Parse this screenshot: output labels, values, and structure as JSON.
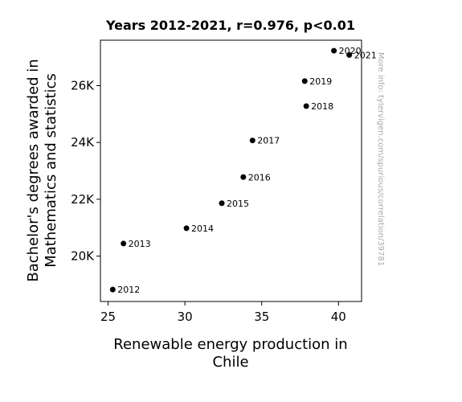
{
  "chart_data": {
    "type": "scatter",
    "title": "Years 2012-2021, r=0.976, p<0.01",
    "xlabel_lines": [
      "Renewable energy production in",
      "Chile"
    ],
    "ylabel_lines": [
      "Bachelor's degrees awarded in",
      "Mathematics and statistics"
    ],
    "xlim": [
      24.5,
      41.5
    ],
    "ylim": [
      18400,
      27600
    ],
    "xticks": [
      25,
      30,
      35,
      40
    ],
    "yticks": [
      20000,
      22000,
      24000,
      26000
    ],
    "ytick_labels": [
      "20K",
      "22K",
      "24K",
      "26K"
    ],
    "grid": false,
    "point_color": "#000000",
    "points": [
      {
        "x": 25.3,
        "y": 18820,
        "label": "2012"
      },
      {
        "x": 26.0,
        "y": 20440,
        "label": "2013"
      },
      {
        "x": 30.1,
        "y": 20980,
        "label": "2014"
      },
      {
        "x": 32.4,
        "y": 21860,
        "label": "2015"
      },
      {
        "x": 33.8,
        "y": 22780,
        "label": "2016"
      },
      {
        "x": 34.4,
        "y": 24070,
        "label": "2017"
      },
      {
        "x": 37.9,
        "y": 25280,
        "label": "2018"
      },
      {
        "x": 37.8,
        "y": 26160,
        "label": "2019"
      },
      {
        "x": 39.7,
        "y": 27230,
        "label": "2020"
      },
      {
        "x": 40.7,
        "y": 27080,
        "label": "2021"
      }
    ]
  },
  "watermark": "More info: tylervigen.com/spurious/correlation/39781"
}
